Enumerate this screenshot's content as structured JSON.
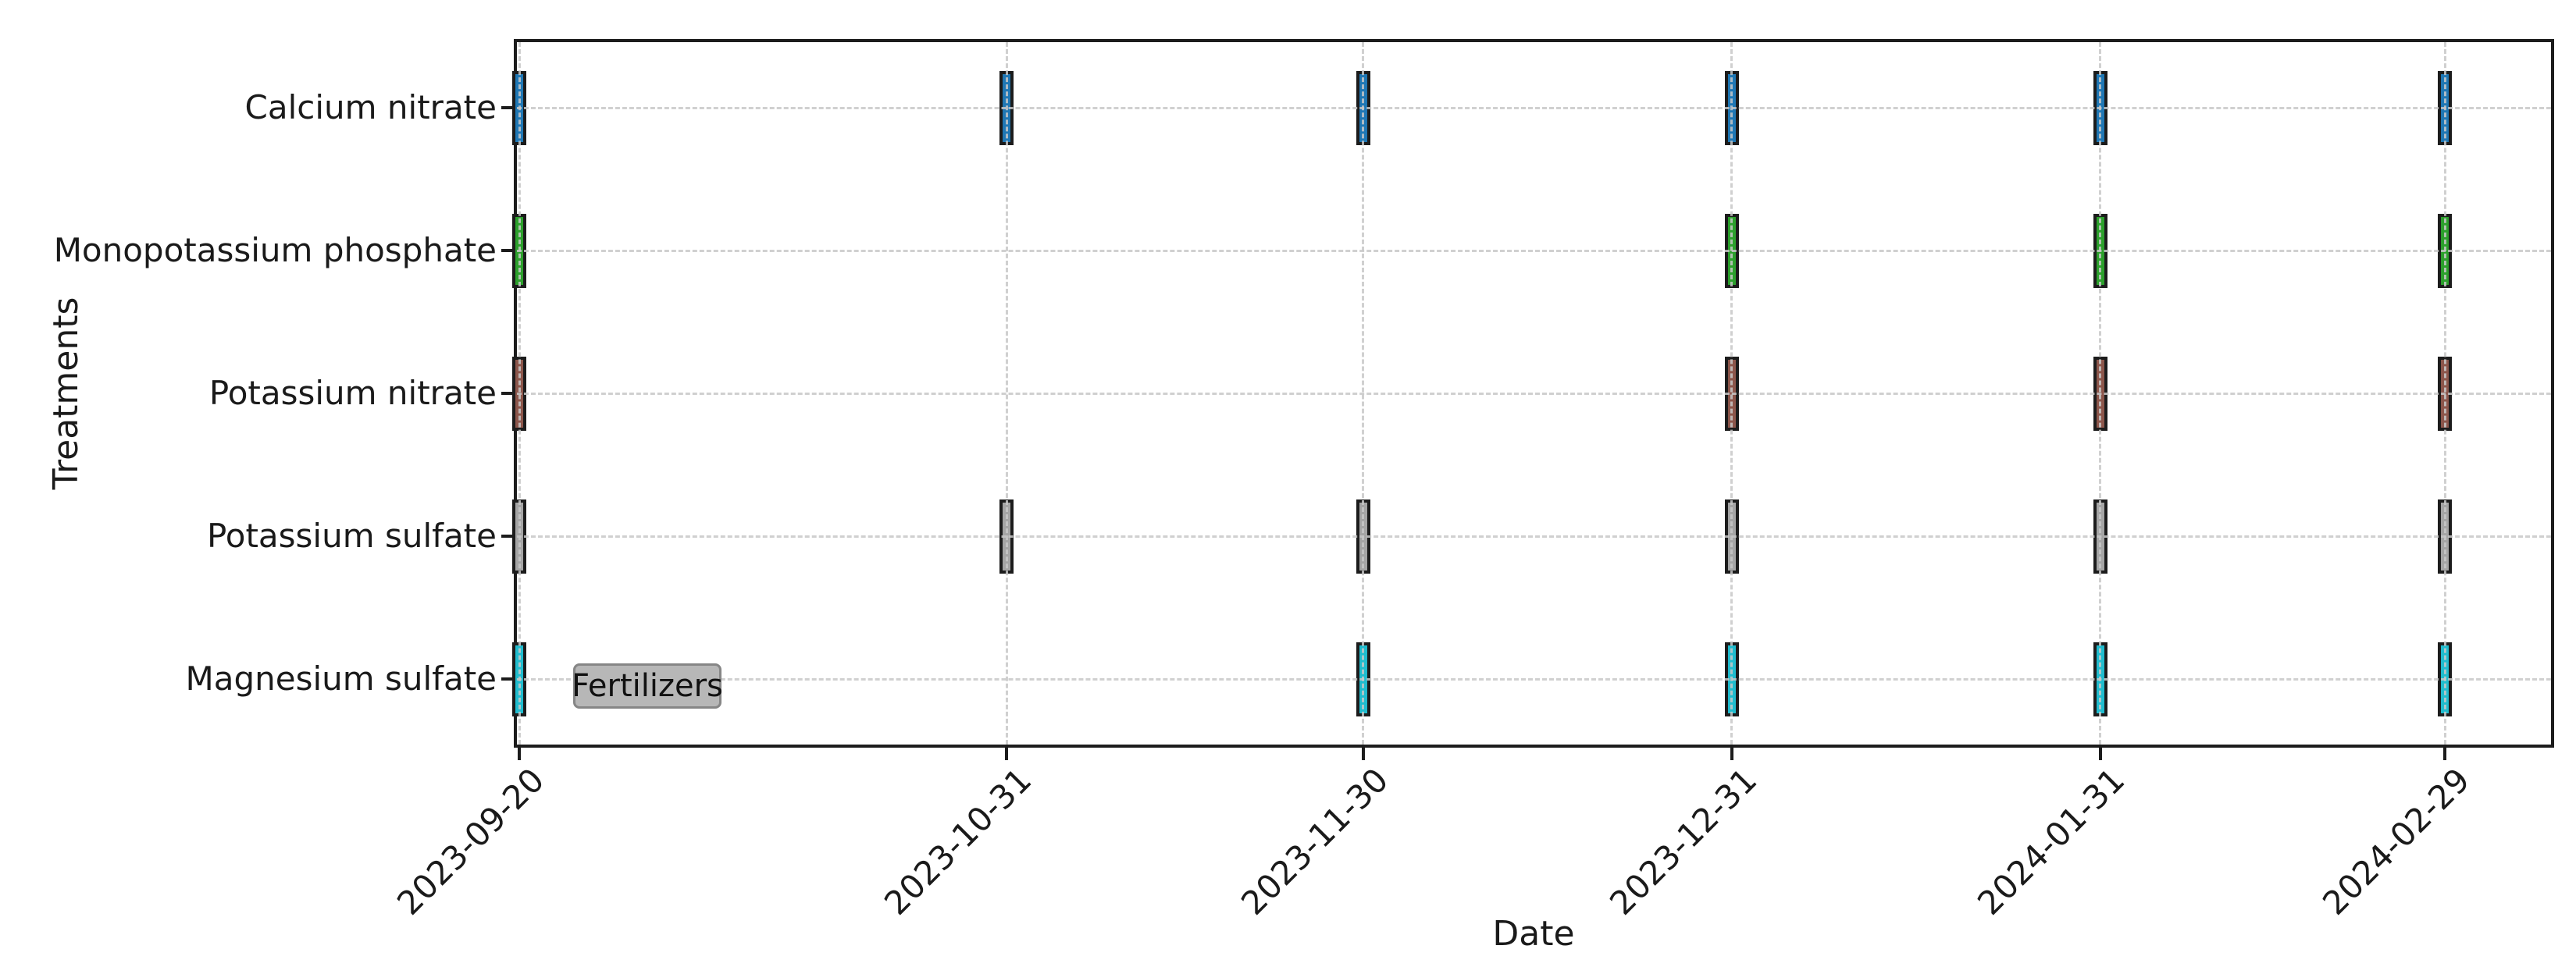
{
  "chart_data": {
    "type": "bar",
    "subtype": "event-timeline-gantt",
    "title": "",
    "xlabel": "Date",
    "ylabel": "Treatments",
    "legend_label": "Fertilizers",
    "legend_position": "inside-lower-left",
    "grid": "dashed, both axes, drawn over bars",
    "background_color": "#ffffff",
    "spine_color": "#1c1c1c",
    "gridline_color": "#c8c8c8",
    "bar_edge_color": "#1c1c1c",
    "x_tick_labels": [
      "2023-09-20",
      "2023-10-31",
      "2023-11-30",
      "2023-12-31",
      "2024-01-31",
      "2024-02-29"
    ],
    "x_tick_rotation_deg": 45,
    "x_range_days": 162,
    "categories": [
      "Calcium nitrate",
      "Monopotassium phosphate",
      "Potassium nitrate",
      "Potassium sulfate",
      "Magnesium sulfate"
    ],
    "series": [
      {
        "name": "Calcium nitrate",
        "color": "#1f77b4",
        "application_dates": [
          "2023-09-20",
          "2023-10-31",
          "2023-11-30",
          "2023-12-31",
          "2024-01-31",
          "2024-02-29"
        ]
      },
      {
        "name": "Monopotassium phosphate",
        "color": "#2ca02c",
        "application_dates": [
          "2023-09-20",
          "2023-12-31",
          "2024-01-31",
          "2024-02-29"
        ]
      },
      {
        "name": "Potassium nitrate",
        "color": "#8c564b",
        "application_dates": [
          "2023-09-20",
          "2023-12-31",
          "2024-01-31",
          "2024-02-29"
        ]
      },
      {
        "name": "Potassium sulfate",
        "color": "#a5a5a5",
        "application_dates": [
          "2023-09-20",
          "2023-10-31",
          "2023-11-30",
          "2023-12-31",
          "2024-01-31",
          "2024-02-29"
        ]
      },
      {
        "name": "Magnesium sulfate",
        "color": "#20bcce",
        "application_dates": [
          "2023-09-20",
          "2023-11-30",
          "2023-12-31",
          "2024-01-31",
          "2024-02-29"
        ]
      }
    ],
    "bar_style": {
      "approx_duration_days": 1,
      "bar_height_fraction_of_row": 0.52
    }
  }
}
